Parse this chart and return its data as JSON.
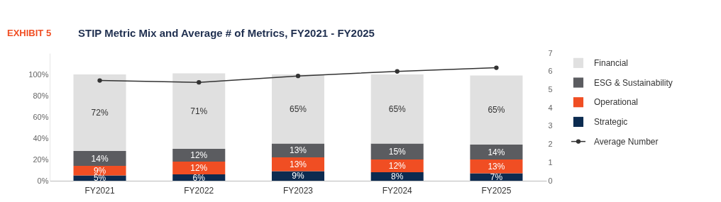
{
  "chart_data": {
    "type": "bar",
    "title": "STIP Metric Mix and Average # of Metrics, FY2021 - FY2025",
    "annotations": [
      "EXHIBIT 5"
    ],
    "categories": [
      "FY2021",
      "FY2022",
      "FY2023",
      "FY2024",
      "FY2025"
    ],
    "stacked": true,
    "series": [
      {
        "name": "Strategic",
        "color": "#0c2b50",
        "values": [
          5,
          6,
          9,
          8,
          7
        ],
        "value_labels": [
          "5%",
          "6%",
          "9%",
          "8%",
          "7%"
        ]
      },
      {
        "name": "Operational",
        "color": "#f04e23",
        "values": [
          9,
          12,
          13,
          12,
          13
        ],
        "value_labels": [
          "9%",
          "12%",
          "13%",
          "12%",
          "13%"
        ]
      },
      {
        "name": "ESG & Sustainability",
        "color": "#5b5c60",
        "values": [
          14,
          12,
          13,
          15,
          14
        ],
        "value_labels": [
          "14%",
          "12%",
          "13%",
          "15%",
          "14%"
        ]
      },
      {
        "name": "Financial",
        "color": "#e0e0e0",
        "values": [
          72,
          71,
          65,
          65,
          65
        ],
        "value_labels": [
          "72%",
          "71%",
          "65%",
          "65%",
          "65%"
        ]
      },
      {
        "name": "Average Number",
        "type": "line",
        "axis": "y2",
        "color": "#333333",
        "marker": "circle",
        "values": [
          5.5,
          5.4,
          5.75,
          6.0,
          6.2
        ]
      }
    ],
    "ylim": [
      0,
      120
    ],
    "yticks": [
      {
        "value": 0,
        "label": "0%"
      },
      {
        "value": 20,
        "label": "20%"
      },
      {
        "value": 40,
        "label": "40%"
      },
      {
        "value": 60,
        "label": "60%"
      },
      {
        "value": 80,
        "label": "80%"
      },
      {
        "value": 100,
        "label": "100%"
      }
    ],
    "y2lim": [
      0,
      7
    ],
    "y2ticks": [
      0,
      1,
      2,
      3,
      4,
      5,
      6,
      7
    ],
    "grid": false,
    "legend": "right"
  }
}
